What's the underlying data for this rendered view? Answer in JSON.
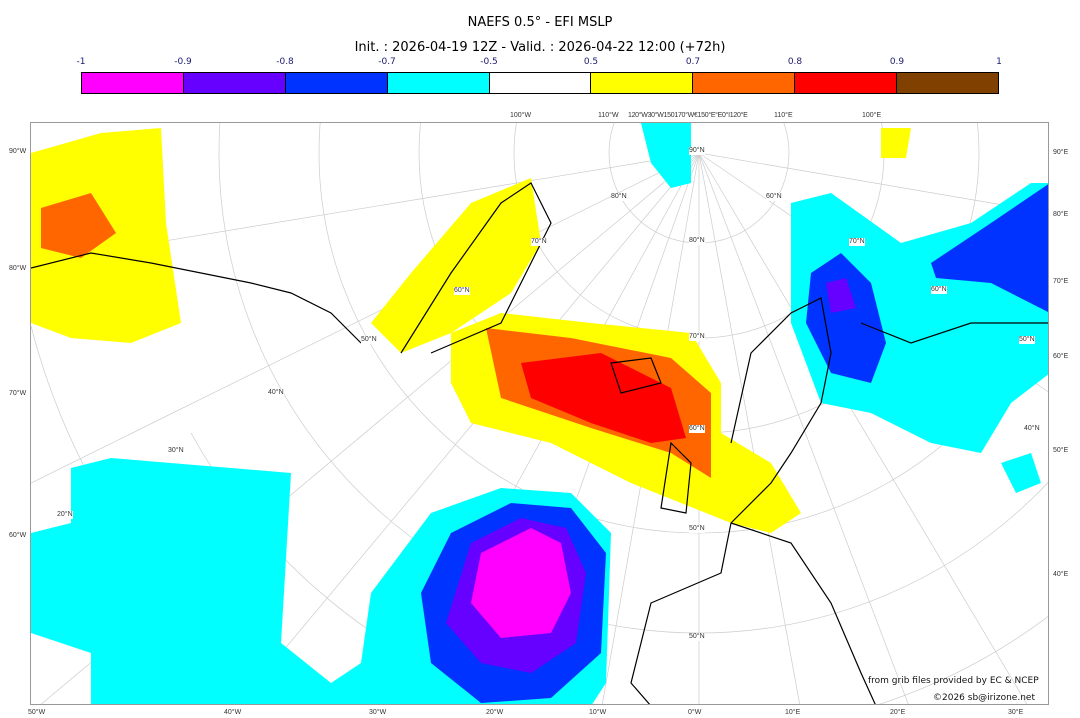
{
  "header": {
    "title": "NAEFS 0.5° - EFI MSLP",
    "subtitle": "Init. : 2026-04-19 12Z - Valid. : 2026-04-22 12:00 (+72h)"
  },
  "colorbar": {
    "ticks": [
      "-1",
      "-0.9",
      "-0.8",
      "-0.7",
      "-0.5",
      "0.5",
      "0.7",
      "0.8",
      "0.9",
      "1"
    ],
    "colors": [
      "#ff00ff",
      "#6600ff",
      "#0033ff",
      "#00ffff",
      "#ffffff",
      "#ffff00",
      "#ff6600",
      "#ff0000",
      "#804000"
    ]
  },
  "axes": {
    "top": [
      "100°W",
      "110°W",
      "120°W30°W150170°W€150°E°E0°I120°E",
      "110°E",
      "100°E"
    ],
    "left": [
      "90°W",
      "80°W",
      "70°W",
      "60°W"
    ],
    "right": [
      "90°E",
      "80°E",
      "70°E",
      "60°E",
      "50°E",
      "40°E"
    ],
    "bottom": [
      "50°W",
      "40°W",
      "30°W",
      "20°W",
      "10°W",
      "0°W",
      "10°E",
      "20°E",
      "30°E"
    ],
    "lat": [
      "90°N",
      "80°N",
      "70°N",
      "60°N",
      "50°N",
      "40°N",
      "30°N",
      "20°N",
      "80°N",
      "70°N",
      "60°N",
      "50°N",
      "60°N",
      "50°N",
      "70°N",
      "60°N",
      "50°N",
      "40°N"
    ]
  },
  "credits": {
    "source": "from grib files provided by EC & NCEP",
    "copyright": "©2026 sb@irizone.net"
  }
}
